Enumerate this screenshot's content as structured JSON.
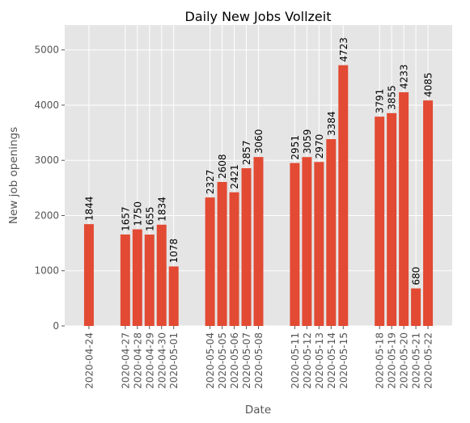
{
  "chart_data": {
    "type": "bar",
    "title": "Daily New Jobs Vollzeit",
    "xlabel": "Date",
    "ylabel": "New job openings",
    "ylim": [
      0,
      5450
    ],
    "yticks": [
      0,
      1000,
      2000,
      3000,
      4000,
      5000
    ],
    "grid": true,
    "x_axis": "date",
    "x_range": [
      "2020-04-22",
      "2020-05-24"
    ],
    "bar_color": "#E24A33",
    "background_color": "#E5E5E5",
    "grid_color": "#FFFFFF",
    "points": [
      {
        "date": "2020-04-24",
        "value": 1844
      },
      {
        "date": "2020-04-27",
        "value": 1657
      },
      {
        "date": "2020-04-28",
        "value": 1750
      },
      {
        "date": "2020-04-29",
        "value": 1655
      },
      {
        "date": "2020-04-30",
        "value": 1834
      },
      {
        "date": "2020-05-01",
        "value": 1078
      },
      {
        "date": "2020-05-04",
        "value": 2327
      },
      {
        "date": "2020-05-05",
        "value": 2608
      },
      {
        "date": "2020-05-06",
        "value": 2421
      },
      {
        "date": "2020-05-07",
        "value": 2857
      },
      {
        "date": "2020-05-08",
        "value": 3060
      },
      {
        "date": "2020-05-11",
        "value": 2951
      },
      {
        "date": "2020-05-12",
        "value": 3059
      },
      {
        "date": "2020-05-13",
        "value": 2970
      },
      {
        "date": "2020-05-14",
        "value": 3384
      },
      {
        "date": "2020-05-15",
        "value": 4723
      },
      {
        "date": "2020-05-18",
        "value": 3791
      },
      {
        "date": "2020-05-19",
        "value": 3855
      },
      {
        "date": "2020-05-20",
        "value": 4233
      },
      {
        "date": "2020-05-21",
        "value": 680
      },
      {
        "date": "2020-05-22",
        "value": 4085
      }
    ]
  }
}
